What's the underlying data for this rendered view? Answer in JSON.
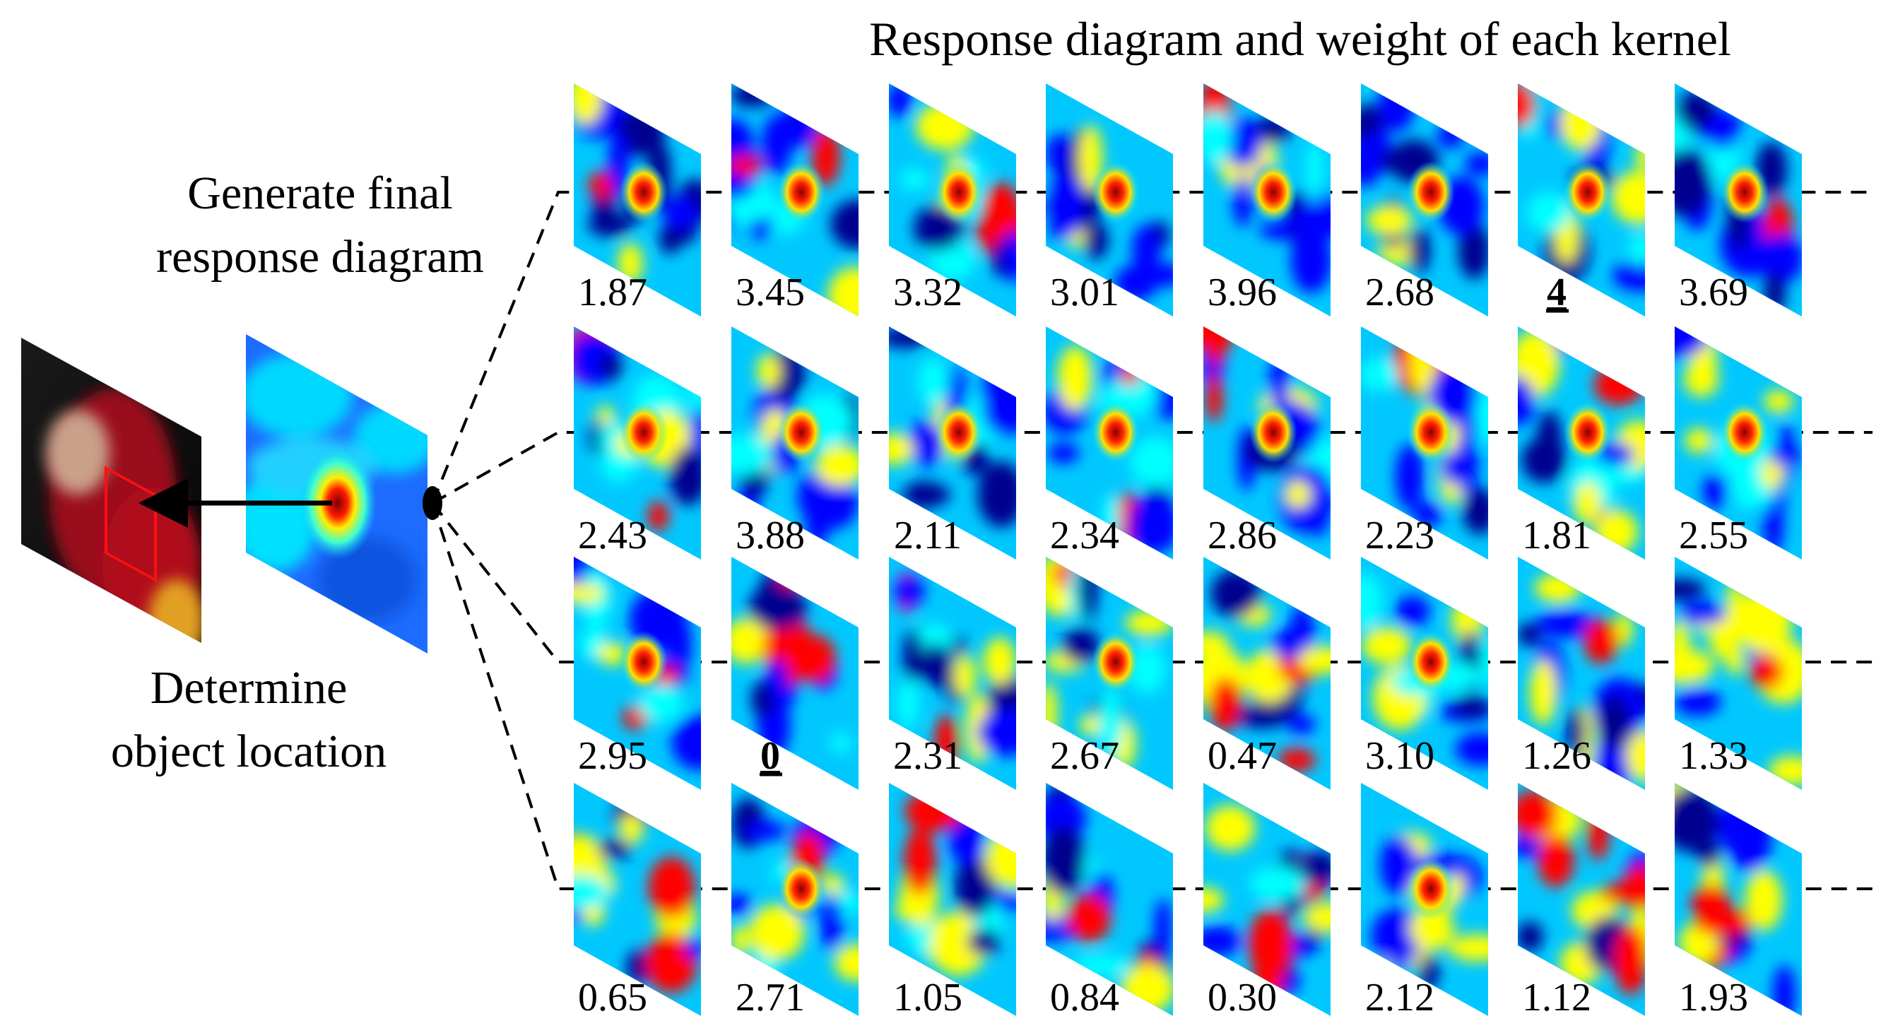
{
  "title": "Response diagram and weight of each kernel",
  "generate_label": [
    "Generate final",
    "response diagram"
  ],
  "determine_label": [
    "Determine",
    "object location"
  ],
  "weights": [
    [
      "1.87",
      "3.45",
      "3.32",
      "3.01",
      "3.96",
      "2.68",
      "4",
      "3.69"
    ],
    [
      "2.43",
      "3.88",
      "2.11",
      "2.34",
      "2.86",
      "2.23",
      "1.81",
      "2.55"
    ],
    [
      "2.95",
      "0",
      "2.31",
      "2.67",
      "0.47",
      "3.10",
      "1.26",
      "1.33"
    ],
    [
      "0.65",
      "2.71",
      "1.05",
      "0.84",
      "0.30",
      "2.12",
      "1.12",
      "1.93"
    ]
  ],
  "emphasized_weights": [
    "4",
    "0"
  ],
  "colormap": [
    "#00008f",
    "#0000ff",
    "#00ffff",
    "#ffff00",
    "#ff0000",
    "#800000"
  ]
}
